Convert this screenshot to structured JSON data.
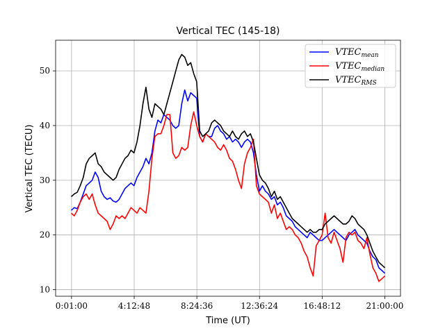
{
  "chart_data": {
    "type": "line",
    "title": "Vertical TEC (145-18)",
    "xlabel": "Time (UT)",
    "ylabel": "Vertical TEC (TECU)",
    "x_unit": "hours",
    "xlim": [
      -1.05,
      22.05
    ],
    "ylim": [
      8.8,
      55.6
    ],
    "x_ticks": [
      0.01667,
      4.2133,
      8.41,
      12.6067,
      16.8033,
      21.0
    ],
    "x_tick_labels": [
      "0:01:00",
      "4:12:48",
      "8:24:36",
      "12:36:24",
      "16:48:12",
      "21:00:00"
    ],
    "y_ticks": [
      10,
      20,
      30,
      40,
      50
    ],
    "grid": true,
    "legend_position": "top-right",
    "series": [
      {
        "name": "VTEC",
        "name_sub": "mean",
        "color": "#0000ff",
        "x": [
          0.0,
          0.2,
          0.4,
          0.6,
          0.8,
          1.0,
          1.2,
          1.4,
          1.6,
          1.8,
          2.0,
          2.2,
          2.4,
          2.6,
          2.8,
          3.0,
          3.2,
          3.4,
          3.6,
          3.8,
          4.0,
          4.2,
          4.4,
          4.6,
          4.8,
          5.0,
          5.2,
          5.4,
          5.6,
          5.8,
          6.0,
          6.2,
          6.4,
          6.6,
          6.8,
          7.0,
          7.2,
          7.4,
          7.6,
          7.8,
          8.0,
          8.2,
          8.4,
          8.6,
          8.8,
          9.0,
          9.2,
          9.4,
          9.6,
          9.8,
          10.0,
          10.2,
          10.4,
          10.6,
          10.8,
          11.0,
          11.2,
          11.4,
          11.6,
          11.8,
          12.0,
          12.2,
          12.4,
          12.6,
          12.8,
          13.0,
          13.2,
          13.4,
          13.6,
          13.8,
          14.0,
          14.2,
          14.4,
          14.6,
          14.8,
          15.0,
          15.2,
          15.4,
          15.6,
          15.8,
          16.0,
          16.2,
          16.4,
          16.6,
          16.8,
          17.0,
          17.2,
          17.4,
          17.6,
          17.8,
          18.0,
          18.2,
          18.4,
          18.6,
          18.8,
          19.0,
          19.2,
          19.4,
          19.6,
          19.8,
          20.0,
          20.2,
          20.4,
          20.6,
          20.8,
          21.0
        ],
        "y": [
          24.5,
          25.0,
          24.8,
          26.0,
          27.5,
          29.0,
          29.5,
          30.0,
          31.5,
          30.5,
          28.0,
          27.0,
          26.5,
          26.8,
          26.2,
          26.0,
          26.5,
          27.5,
          28.5,
          29.0,
          29.5,
          29.0,
          30.5,
          31.5,
          32.5,
          34.0,
          33.0,
          35.0,
          39.0,
          41.0,
          40.5,
          42.0,
          41.5,
          41.0,
          40.0,
          39.5,
          40.0,
          44.0,
          46.5,
          44.5,
          46.0,
          45.5,
          45.0,
          38.0,
          37.0,
          38.5,
          38.0,
          38.0,
          39.5,
          40.0,
          39.0,
          38.5,
          37.5,
          38.0,
          37.0,
          37.5,
          37.0,
          36.0,
          37.0,
          37.5,
          37.0,
          35.0,
          31.0,
          28.0,
          29.0,
          28.0,
          27.5,
          26.5,
          27.0,
          25.5,
          26.0,
          25.0,
          23.5,
          23.0,
          22.5,
          21.5,
          21.0,
          20.5,
          20.0,
          19.5,
          20.5,
          20.0,
          19.5,
          19.0,
          19.0,
          19.5,
          20.0,
          20.5,
          21.0,
          20.5,
          20.0,
          19.5,
          19.0,
          20.0,
          20.5,
          21.0,
          20.0,
          19.5,
          19.0,
          18.5,
          17.0,
          16.0,
          15.5,
          14.0,
          13.5,
          13.0
        ]
      },
      {
        "name": "VTEC",
        "name_sub": "median",
        "color": "#ff0000",
        "x": [
          0.0,
          0.2,
          0.4,
          0.6,
          0.8,
          1.0,
          1.2,
          1.4,
          1.6,
          1.8,
          2.0,
          2.2,
          2.4,
          2.6,
          2.8,
          3.0,
          3.2,
          3.4,
          3.6,
          3.8,
          4.0,
          4.2,
          4.4,
          4.6,
          4.8,
          5.0,
          5.2,
          5.4,
          5.6,
          5.8,
          6.0,
          6.2,
          6.4,
          6.6,
          6.8,
          7.0,
          7.2,
          7.4,
          7.6,
          7.8,
          8.0,
          8.2,
          8.4,
          8.6,
          8.8,
          9.0,
          9.2,
          9.4,
          9.6,
          9.8,
          10.0,
          10.2,
          10.4,
          10.6,
          10.8,
          11.0,
          11.2,
          11.4,
          11.6,
          11.8,
          12.0,
          12.2,
          12.4,
          12.6,
          12.8,
          13.0,
          13.2,
          13.4,
          13.6,
          13.8,
          14.0,
          14.2,
          14.4,
          14.6,
          14.8,
          15.0,
          15.2,
          15.4,
          15.6,
          15.8,
          16.0,
          16.2,
          16.4,
          16.6,
          16.8,
          17.0,
          17.2,
          17.4,
          17.6,
          17.8,
          18.0,
          18.2,
          18.4,
          18.6,
          18.8,
          19.0,
          19.2,
          19.4,
          19.6,
          19.8,
          20.0,
          20.2,
          20.4,
          20.6,
          20.8,
          21.0
        ],
        "y": [
          24.0,
          23.5,
          24.5,
          26.0,
          27.0,
          27.5,
          26.5,
          27.5,
          25.5,
          24.0,
          23.5,
          23.0,
          22.5,
          21.0,
          22.0,
          23.5,
          23.0,
          23.5,
          23.0,
          24.0,
          25.0,
          24.5,
          24.0,
          25.0,
          24.5,
          24.0,
          28.0,
          34.0,
          38.0,
          38.5,
          38.5,
          40.0,
          42.0,
          42.0,
          35.0,
          34.0,
          34.5,
          36.0,
          35.5,
          36.0,
          40.0,
          42.5,
          40.0,
          38.0,
          37.0,
          38.5,
          38.0,
          37.5,
          37.0,
          36.0,
          35.5,
          36.5,
          35.5,
          34.0,
          33.5,
          32.0,
          30.0,
          28.5,
          33.0,
          35.0,
          36.0,
          37.5,
          29.0,
          27.5,
          27.0,
          26.5,
          26.0,
          24.0,
          25.5,
          23.0,
          24.0,
          22.5,
          21.0,
          21.5,
          21.0,
          20.0,
          19.5,
          18.5,
          17.0,
          16.0,
          14.0,
          12.5,
          18.0,
          19.0,
          20.0,
          24.0,
          19.5,
          18.5,
          20.5,
          19.0,
          17.5,
          15.0,
          19.5,
          20.5,
          20.0,
          20.5,
          19.0,
          18.5,
          17.5,
          19.5,
          16.5,
          14.0,
          13.0,
          11.5,
          12.0,
          12.5
        ]
      },
      {
        "name": "VTEC",
        "name_sub": "RMS",
        "color": "#000000",
        "x": [
          0.0,
          0.2,
          0.4,
          0.6,
          0.8,
          1.0,
          1.2,
          1.4,
          1.6,
          1.8,
          2.0,
          2.2,
          2.4,
          2.6,
          2.8,
          3.0,
          3.2,
          3.4,
          3.6,
          3.8,
          4.0,
          4.2,
          4.4,
          4.6,
          4.8,
          5.0,
          5.2,
          5.4,
          5.6,
          5.8,
          6.0,
          6.2,
          6.4,
          6.6,
          6.8,
          7.0,
          7.2,
          7.4,
          7.6,
          7.8,
          8.0,
          8.2,
          8.4,
          8.6,
          8.8,
          9.0,
          9.2,
          9.4,
          9.6,
          9.8,
          10.0,
          10.2,
          10.4,
          10.6,
          10.8,
          11.0,
          11.2,
          11.4,
          11.6,
          11.8,
          12.0,
          12.2,
          12.4,
          12.6,
          12.8,
          13.0,
          13.2,
          13.4,
          13.6,
          13.8,
          14.0,
          14.2,
          14.4,
          14.6,
          14.8,
          15.0,
          15.2,
          15.4,
          15.6,
          15.8,
          16.0,
          16.2,
          16.4,
          16.6,
          16.8,
          17.0,
          17.2,
          17.4,
          17.6,
          17.8,
          18.0,
          18.2,
          18.4,
          18.6,
          18.8,
          19.0,
          19.2,
          19.4,
          19.6,
          19.8,
          20.0,
          20.2,
          20.4,
          20.6,
          20.8,
          21.0
        ],
        "y": [
          27.0,
          27.5,
          27.8,
          29.0,
          30.5,
          33.0,
          34.0,
          34.5,
          35.0,
          33.0,
          32.5,
          31.5,
          31.0,
          30.5,
          30.0,
          30.5,
          32.0,
          33.0,
          34.0,
          34.5,
          35.5,
          35.0,
          37.0,
          40.0,
          44.0,
          47.0,
          43.0,
          41.5,
          44.0,
          43.5,
          43.0,
          42.0,
          44.0,
          46.0,
          48.0,
          50.0,
          52.0,
          53.0,
          52.5,
          51.0,
          51.5,
          49.5,
          48.0,
          39.0,
          38.0,
          38.5,
          39.0,
          40.5,
          41.0,
          40.5,
          40.0,
          39.0,
          38.5,
          38.0,
          39.0,
          38.0,
          37.5,
          38.5,
          39.0,
          38.0,
          38.5,
          37.0,
          34.0,
          31.0,
          30.0,
          29.5,
          28.5,
          27.0,
          28.0,
          26.5,
          27.0,
          26.0,
          25.0,
          24.0,
          23.0,
          22.5,
          22.0,
          21.5,
          21.0,
          20.5,
          21.0,
          20.5,
          20.5,
          21.0,
          21.0,
          22.0,
          22.5,
          23.0,
          23.5,
          23.0,
          22.5,
          22.0,
          22.0,
          22.5,
          23.5,
          23.0,
          22.0,
          21.5,
          21.0,
          20.0,
          18.5,
          17.0,
          16.0,
          15.0,
          14.5,
          14.0
        ]
      }
    ]
  }
}
